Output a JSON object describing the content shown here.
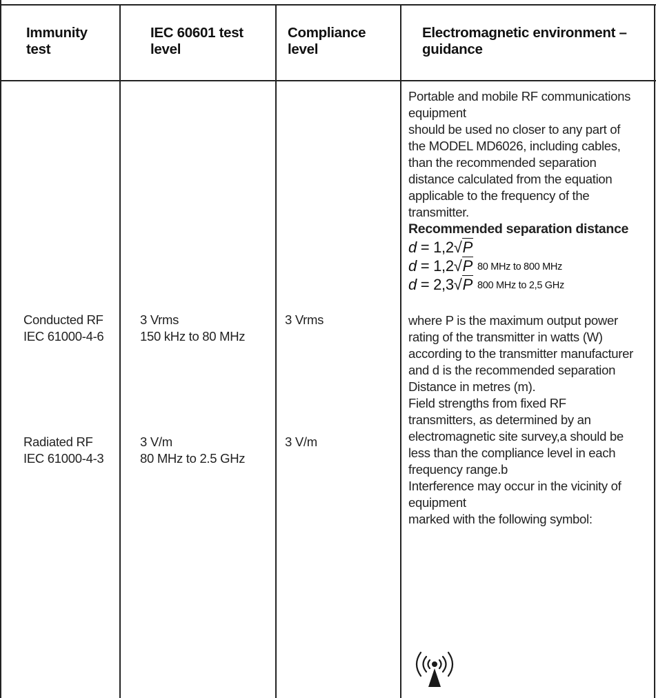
{
  "headers": {
    "immunity_test": [
      "Immunity",
      "test"
    ],
    "test_level": [
      "IEC 60601 test",
      "level"
    ],
    "compliance": [
      "Compliance",
      "level"
    ],
    "guidance": [
      "Electromagnetic environment –",
      "guidance"
    ]
  },
  "rows": [
    {
      "test": [
        "Conducted RF",
        "IEC 61000-4-6"
      ],
      "level": [
        "3 Vrms",
        "150 kHz to 80 MHz"
      ],
      "compliance": "3 Vrms"
    },
    {
      "test": [
        "Radiated RF",
        "IEC 61000-4-3"
      ],
      "level": [
        "3 V/m",
        "80 MHz to 2.5 GHz"
      ],
      "compliance": "3 V/m"
    }
  ],
  "guidance": {
    "intro": [
      "Portable and mobile RF communications",
      "equipment",
      "should be used no closer to any part of",
      "the MODEL MD6026, including cables,",
      "than the recommended separation",
      "distance calculated from the equation",
      "applicable to the frequency of the",
      "transmitter."
    ],
    "heading": "Recommended separation distance",
    "equations": [
      {
        "lhs": "d",
        "coef": "= 1,2",
        "var": "P",
        "range": ""
      },
      {
        "lhs": "d",
        "coef": "= 1,2",
        "var": "P",
        "range": "80 MHz to 800 MHz"
      },
      {
        "lhs": "d",
        "coef": "= 2,3",
        "var": "P",
        "range": "800 MHz to 2,5 GHz"
      }
    ],
    "body": [
      "where P is the maximum output power",
      "rating of the transmitter in watts (W)",
      "according to the transmitter manufacturer",
      "and d is the recommended separation",
      "Distance in metres (m).",
      "Field strengths from fixed RF",
      "transmitters, as determined by an",
      "electromagnetic site survey,a should be",
      "less than the compliance level in each",
      "frequency range.b",
      "Interference may occur in the vicinity of",
      "equipment",
      "marked with the following symbol:"
    ],
    "symbol_icon": "non-ionizing-radiation-icon"
  }
}
